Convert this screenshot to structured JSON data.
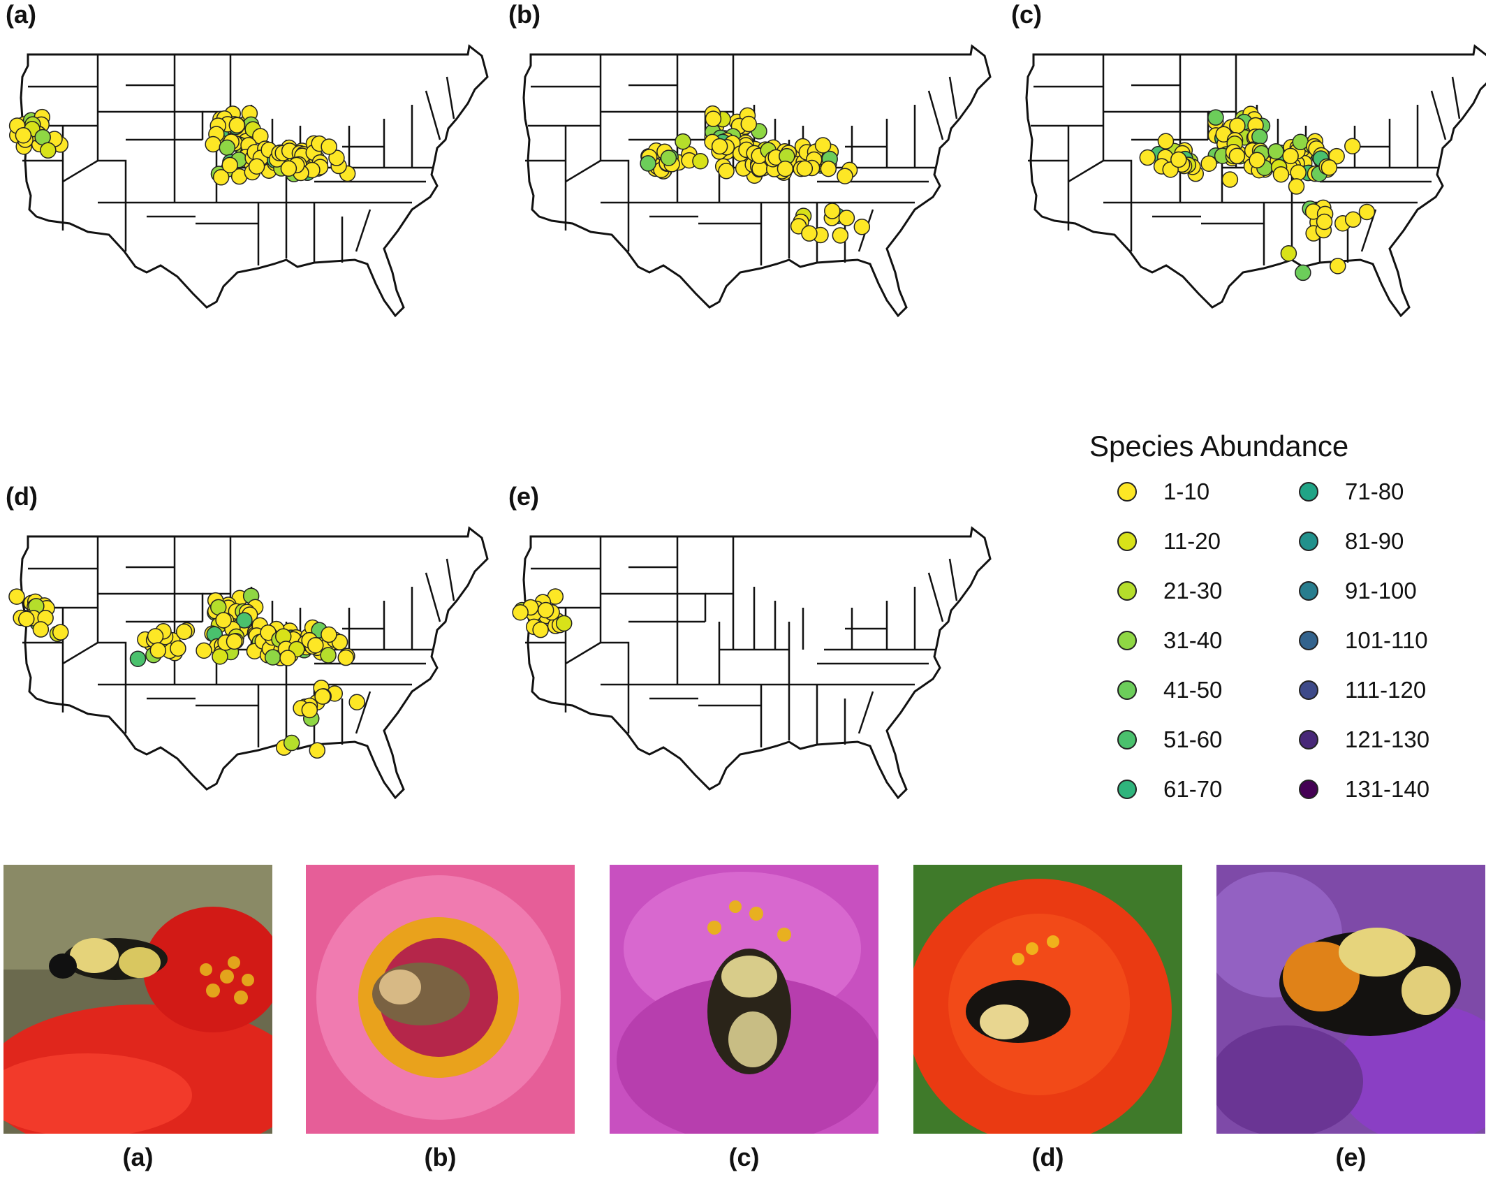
{
  "panels": [
    {
      "label": "(a)",
      "regions": [
        "west",
        "midwest",
        "ohio-valley"
      ]
    },
    {
      "label": "(b)",
      "regions": [
        "plains",
        "midwest",
        "ohio-valley",
        "carolinas"
      ]
    },
    {
      "label": "(c)",
      "regions": [
        "plains",
        "midwest",
        "ohio-valley",
        "carolinas",
        "georgia"
      ]
    },
    {
      "label": "(d)",
      "regions": [
        "west",
        "plains",
        "midwest",
        "ohio-valley",
        "carolinas",
        "georgia"
      ]
    },
    {
      "label": "(e)",
      "regions": [
        "west"
      ]
    }
  ],
  "legend": {
    "title": "Species Abundance",
    "items": [
      {
        "label": "1-10",
        "color": "#fde725"
      },
      {
        "label": "11-20",
        "color": "#d8e219"
      },
      {
        "label": "21-30",
        "color": "#b5de2b"
      },
      {
        "label": "31-40",
        "color": "#8fd744"
      },
      {
        "label": "41-50",
        "color": "#6ccd5a"
      },
      {
        "label": "51-60",
        "color": "#4ac16d"
      },
      {
        "label": "61-70",
        "color": "#2fb47c"
      },
      {
        "label": "71-80",
        "color": "#20a486"
      },
      {
        "label": "81-90",
        "color": "#21918c"
      },
      {
        "label": "91-100",
        "color": "#287d8e"
      },
      {
        "label": "101-110",
        "color": "#33638d"
      },
      {
        "label": "111-120",
        "color": "#3e4a89"
      },
      {
        "label": "121-130",
        "color": "#482878"
      },
      {
        "label": "131-140",
        "color": "#440154"
      }
    ]
  },
  "photos": [
    {
      "label": "(a)",
      "flower": "red-zinnia",
      "bee": "bumblebee-yellow-black"
    },
    {
      "label": "(b)",
      "flower": "pink-zinnia",
      "bee": "bumblebee-brown"
    },
    {
      "label": "(c)",
      "flower": "magenta-zinnia",
      "bee": "bumblebee-pale"
    },
    {
      "label": "(d)",
      "flower": "orange-zinnia",
      "bee": "bumblebee-yellow-black"
    },
    {
      "label": "(e)",
      "flower": "purple-aster",
      "bee": "bumblebee-orange-banded"
    }
  ]
}
